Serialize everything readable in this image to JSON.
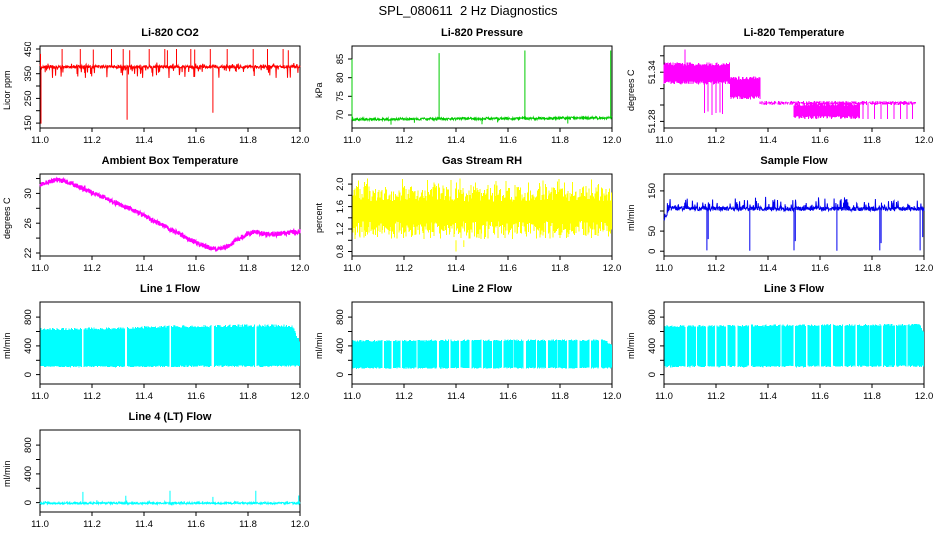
{
  "page_title": "SPL_080611  2 Hz Diagnostics",
  "background": "#FFFFFF",
  "axis_color": "#000000",
  "chart_data": [
    {
      "type": "line",
      "title": "Li-820 CO2",
      "xlabel": "",
      "ylabel": "Licor ppm",
      "xlim": [
        11,
        12
      ],
      "xticks": [
        11,
        11.2,
        11.4,
        11.6,
        11.8,
        12
      ],
      "xtick_labels": [
        "11.0",
        "11.2",
        "11.4",
        "11.6",
        "11.8",
        "12.0"
      ],
      "ylim": [
        130,
        462
      ],
      "yticks": [
        150,
        200,
        250,
        300,
        350,
        400,
        450
      ],
      "ytick_labels": [
        "150",
        "",
        "250",
        "",
        "350",
        "",
        "450"
      ],
      "grid": false,
      "legend": null,
      "series": {
        "kind": "line",
        "color": "#FF0000",
        "lw": 1,
        "n": 750,
        "keypoints": [
          [
            11,
            378
          ],
          [
            12,
            378
          ]
        ],
        "noise": 6,
        "p_down": 0.1,
        "amp_down": 48,
        "p_up": 0.03,
        "amp_up": 15,
        "spikes": [
          [
            11.002,
            430
          ],
          [
            11.004,
            148
          ],
          [
            11.085,
            450
          ],
          [
            11.155,
            450
          ],
          [
            11.205,
            448
          ],
          [
            11.275,
            450
          ],
          [
            11.32,
            450
          ],
          [
            11.335,
            163
          ],
          [
            11.345,
            445
          ],
          [
            11.42,
            450
          ],
          [
            11.48,
            450
          ],
          [
            11.49,
            445
          ],
          [
            11.525,
            450
          ],
          [
            11.58,
            450
          ],
          [
            11.595,
            448
          ],
          [
            11.655,
            450
          ],
          [
            11.665,
            192
          ],
          [
            11.72,
            450
          ],
          [
            11.82,
            450
          ],
          [
            11.875,
            450
          ],
          [
            11.935,
            450
          ],
          [
            11.955,
            445
          ]
        ]
      }
    },
    {
      "type": "line",
      "title": "Li-820 Pressure",
      "xlabel": "",
      "ylabel": "kPa",
      "xlim": [
        11,
        12
      ],
      "xticks": [
        11,
        11.2,
        11.4,
        11.6,
        11.8,
        12
      ],
      "xtick_labels": [
        "11.0",
        "11.2",
        "11.4",
        "11.6",
        "11.8",
        "12.0"
      ],
      "ylim": [
        66.5,
        88.5
      ],
      "yticks": [
        70,
        75,
        80,
        85
      ],
      "ytick_labels": [
        "70",
        "75",
        "80",
        "85"
      ],
      "grid": false,
      "legend": null,
      "series": {
        "kind": "line",
        "color": "#00CC00",
        "lw": 1,
        "n": 750,
        "keypoints": [
          [
            11,
            68.8
          ],
          [
            12,
            69.2
          ]
        ],
        "noise": 0.35,
        "spikes": [
          [
            11.0,
            85
          ],
          [
            11.15,
            67.4
          ],
          [
            11.24,
            67.9
          ],
          [
            11.335,
            86.6
          ],
          [
            11.5,
            67.5
          ],
          [
            11.56,
            68.0
          ],
          [
            11.665,
            87.3
          ],
          [
            11.83,
            67.7
          ],
          [
            11.995,
            87.3
          ]
        ]
      }
    },
    {
      "type": "line",
      "title": "Li-820 Temperature",
      "xlabel": "",
      "ylabel": "degrees C",
      "xlim": [
        11,
        12
      ],
      "xticks": [
        11,
        11.2,
        11.4,
        11.6,
        11.8,
        12
      ],
      "xtick_labels": [
        "11.0",
        "11.2",
        "11.4",
        "11.6",
        "11.8",
        "12.0"
      ],
      "ylim": [
        51.272,
        51.372
      ],
      "yticks": [
        51.28,
        51.3,
        51.32,
        51.34,
        51.36
      ],
      "ytick_labels": [
        "51.28",
        "",
        "",
        "51.34",
        ""
      ],
      "grid": false,
      "legend": null,
      "series": {
        "kind": "segband",
        "color": "#FF00FF",
        "edge_j": 0.004,
        "segments": [
          [
            11.0,
            11.255,
            51.325,
            51.352
          ],
          [
            11.255,
            11.37,
            51.307,
            51.335
          ],
          [
            11.37,
            11.97,
            51.3,
            51.305
          ],
          [
            11.5,
            11.755,
            51.283,
            51.303
          ]
        ],
        "drops": [
          [
            11.155,
            51.33,
            51.29
          ],
          [
            11.17,
            51.33,
            51.292
          ],
          [
            11.185,
            51.33,
            51.288
          ],
          [
            11.2,
            51.33,
            51.29
          ],
          [
            11.215,
            51.33,
            51.291
          ],
          [
            11.225,
            51.33,
            51.289
          ],
          [
            11.765,
            51.303,
            51.283
          ],
          [
            11.785,
            51.303,
            51.283
          ],
          [
            11.81,
            51.303,
            51.283
          ],
          [
            11.835,
            51.303,
            51.283
          ],
          [
            11.86,
            51.303,
            51.283
          ],
          [
            11.885,
            51.303,
            51.283
          ],
          [
            11.91,
            51.303,
            51.283
          ],
          [
            11.935,
            51.303,
            51.283
          ],
          [
            11.955,
            51.303,
            51.283
          ]
        ],
        "spikes": [
          [
            11.08,
            51.34,
            51.368
          ]
        ]
      }
    },
    {
      "type": "line",
      "title": "Ambient Box Temperature",
      "xlabel": "",
      "ylabel": "degrees C",
      "xlim": [
        11,
        12
      ],
      "xticks": [
        11,
        11.2,
        11.4,
        11.6,
        11.8,
        12
      ],
      "xtick_labels": [
        "11.0",
        "11.2",
        "11.4",
        "11.6",
        "11.8",
        "12.0"
      ],
      "ylim": [
        21.6,
        32.6
      ],
      "yticks": [
        22,
        24,
        26,
        28,
        30,
        32
      ],
      "ytick_labels": [
        "22",
        "",
        "26",
        "",
        "30",
        ""
      ],
      "grid": false,
      "legend": null,
      "series": {
        "kind": "line",
        "color": "#FF00FF",
        "lw": 1.3,
        "n": 1100,
        "noise": 0.33,
        "keypoints": [
          [
            11,
            31.2
          ],
          [
            11.03,
            31.5
          ],
          [
            11.07,
            31.8
          ],
          [
            11.1,
            31.6
          ],
          [
            11.15,
            30.9
          ],
          [
            11.2,
            30.1
          ],
          [
            11.25,
            29.4
          ],
          [
            11.3,
            28.6
          ],
          [
            11.35,
            27.9
          ],
          [
            11.4,
            27.0
          ],
          [
            11.45,
            26.1
          ],
          [
            11.5,
            25.2
          ],
          [
            11.55,
            24.3
          ],
          [
            11.6,
            23.4
          ],
          [
            11.65,
            22.7
          ],
          [
            11.68,
            22.5
          ],
          [
            11.72,
            22.9
          ],
          [
            11.76,
            23.8
          ],
          [
            11.8,
            24.6
          ],
          [
            11.83,
            24.8
          ],
          [
            11.86,
            24.6
          ],
          [
            11.9,
            24.5
          ],
          [
            11.95,
            24.7
          ],
          [
            12,
            24.9
          ]
        ],
        "spikes": []
      }
    },
    {
      "type": "line",
      "title": "Gas Stream RH",
      "xlabel": "",
      "ylabel": "percent",
      "xlim": [
        11,
        12
      ],
      "xticks": [
        11,
        11.2,
        11.4,
        11.6,
        11.8,
        12
      ],
      "xtick_labels": [
        "11.0",
        "11.2",
        "11.4",
        "11.6",
        "11.8",
        "12.0"
      ],
      "ylim": [
        0.72,
        2.18
      ],
      "yticks": [
        0.8,
        1.0,
        1.2,
        1.4,
        1.6,
        1.8,
        2.0
      ],
      "ytick_labels": [
        "0.8",
        "",
        "1.2",
        "",
        "1.6",
        "",
        "2.0"
      ],
      "grid": false,
      "legend": null,
      "series": {
        "kind": "band",
        "color": "#FFFF00",
        "lo": [
          [
            11,
            1.02
          ],
          [
            12,
            1.02
          ]
        ],
        "hi": [
          [
            11,
            1.97
          ],
          [
            12,
            1.97
          ]
        ],
        "lo_j": 0.32,
        "hi_j": 0.28,
        "p_over": 0.12,
        "amp_over": 0.13,
        "gaps": [],
        "spikes": [
          [
            11.4,
            1.0,
            0.8
          ],
          [
            11.43,
            1.0,
            0.88
          ]
        ]
      }
    },
    {
      "type": "line",
      "title": "Sample Flow",
      "xlabel": "",
      "ylabel": "ml/min",
      "xlim": [
        11,
        12
      ],
      "xticks": [
        11,
        11.2,
        11.4,
        11.6,
        11.8,
        12
      ],
      "xtick_labels": [
        "11.0",
        "11.2",
        "11.4",
        "11.6",
        "11.8",
        "12.0"
      ],
      "ylim": [
        -12,
        192
      ],
      "yticks": [
        0,
        50,
        100,
        150
      ],
      "ytick_labels": [
        "0",
        "50",
        "",
        "150"
      ],
      "grid": false,
      "legend": null,
      "series": {
        "kind": "line",
        "color": "#0000EE",
        "lw": 1,
        "n": 850,
        "noise": 5,
        "keypoints": [
          [
            11,
            75
          ],
          [
            11.02,
            106
          ],
          [
            12,
            105
          ]
        ],
        "p_up": 0.15,
        "amp_up": 26,
        "spikes": [
          [
            11.165,
            2
          ],
          [
            11.17,
            30
          ],
          [
            11.33,
            1
          ],
          [
            11.5,
            2
          ],
          [
            11.505,
            25
          ],
          [
            11.665,
            1
          ],
          [
            11.83,
            2
          ],
          [
            11.835,
            20
          ],
          [
            11.985,
            2
          ],
          [
            11.995,
            35
          ]
        ]
      }
    },
    {
      "type": "line",
      "title": "Line 1 Flow",
      "xlabel": "",
      "ylabel": "ml/min",
      "xlim": [
        11,
        12
      ],
      "xticks": [
        11,
        11.2,
        11.4,
        11.6,
        11.8,
        12
      ],
      "xtick_labels": [
        "11.0",
        "11.2",
        "11.4",
        "11.6",
        "11.8",
        "12.0"
      ],
      "ylim": [
        -130,
        1010
      ],
      "yticks": [
        0,
        200,
        400,
        600,
        800
      ],
      "ytick_labels": [
        "0",
        "",
        "400",
        "",
        "800"
      ],
      "grid": false,
      "legend": null,
      "series": {
        "kind": "band",
        "color": "#00FFFF",
        "lo": [
          [
            11,
            100
          ],
          [
            12,
            108
          ]
        ],
        "hi": [
          [
            11,
            650
          ],
          [
            11.3,
            660
          ],
          [
            11.5,
            688
          ],
          [
            11.85,
            700
          ],
          [
            11.97,
            695
          ],
          [
            12,
            470
          ]
        ],
        "lo_j": 22,
        "hi_j": 35,
        "gaps": [
          [
            11.165,
            0.008
          ],
          [
            11.33,
            0.008
          ],
          [
            11.5,
            0.009
          ],
          [
            11.665,
            0.008
          ],
          [
            11.83,
            0.008
          ]
        ],
        "spikes": []
      }
    },
    {
      "type": "line",
      "title": "Line 2 Flow",
      "xlabel": "",
      "ylabel": "ml/min",
      "xlim": [
        11,
        12
      ],
      "xticks": [
        11,
        11.2,
        11.4,
        11.6,
        11.8,
        12
      ],
      "xtick_labels": [
        "11.0",
        "11.2",
        "11.4",
        "11.6",
        "11.8",
        "12.0"
      ],
      "ylim": [
        -130,
        1010
      ],
      "yticks": [
        0,
        200,
        400,
        600,
        800
      ],
      "ytick_labels": [
        "0",
        "",
        "400",
        "",
        "800"
      ],
      "grid": false,
      "legend": null,
      "series": {
        "kind": "band",
        "color": "#00FFFF",
        "lo": [
          [
            11,
            80
          ],
          [
            12,
            85
          ]
        ],
        "hi": [
          [
            11,
            482
          ],
          [
            11.97,
            495
          ],
          [
            12,
            420
          ]
        ],
        "lo_j": 18,
        "hi_j": 25,
        "gaps": [
          [
            11.12,
            0.006
          ],
          [
            11.155,
            0.006
          ],
          [
            11.19,
            0.006
          ],
          [
            11.25,
            0.006
          ],
          [
            11.33,
            0.007
          ],
          [
            11.375,
            0.006
          ],
          [
            11.415,
            0.006
          ],
          [
            11.455,
            0.006
          ],
          [
            11.5,
            0.007
          ],
          [
            11.54,
            0.006
          ],
          [
            11.58,
            0.006
          ],
          [
            11.62,
            0.006
          ],
          [
            11.665,
            0.007
          ],
          [
            11.71,
            0.006
          ],
          [
            11.75,
            0.006
          ],
          [
            11.79,
            0.006
          ],
          [
            11.83,
            0.007
          ],
          [
            11.87,
            0.006
          ],
          [
            11.915,
            0.006
          ],
          [
            11.955,
            0.006
          ]
        ],
        "spikes": []
      }
    },
    {
      "type": "line",
      "title": "Line 3 Flow",
      "xlabel": "",
      "ylabel": "ml/min",
      "xlim": [
        11,
        12
      ],
      "xticks": [
        11,
        11.2,
        11.4,
        11.6,
        11.8,
        12
      ],
      "xtick_labels": [
        "11.0",
        "11.2",
        "11.4",
        "11.6",
        "11.8",
        "12.0"
      ],
      "ylim": [
        -130,
        1010
      ],
      "yticks": [
        0,
        200,
        400,
        600,
        800
      ],
      "ytick_labels": [
        "0",
        "",
        "400",
        "",
        "800"
      ],
      "grid": false,
      "legend": null,
      "series": {
        "kind": "band",
        "color": "#00FFFF",
        "lo": [
          [
            11,
            100
          ],
          [
            12,
            105
          ]
        ],
        "hi": [
          [
            11,
            690
          ],
          [
            11.985,
            710
          ],
          [
            12,
            600
          ]
        ],
        "lo_j": 25,
        "hi_j": 30,
        "gaps": [
          [
            11.085,
            0.006
          ],
          [
            11.125,
            0.006
          ],
          [
            11.165,
            0.006
          ],
          [
            11.2,
            0.006
          ],
          [
            11.24,
            0.006
          ],
          [
            11.28,
            0.006
          ],
          [
            11.33,
            0.007
          ],
          [
            11.45,
            0.006
          ],
          [
            11.5,
            0.007
          ],
          [
            11.55,
            0.006
          ],
          [
            11.6,
            0.006
          ],
          [
            11.645,
            0.006
          ],
          [
            11.69,
            0.006
          ],
          [
            11.74,
            0.006
          ],
          [
            11.79,
            0.006
          ],
          [
            11.84,
            0.006
          ],
          [
            11.89,
            0.006
          ],
          [
            11.935,
            0.006
          ]
        ],
        "spikes": []
      }
    },
    {
      "type": "line",
      "title": "Line 4 (LT) Flow",
      "xlabel": "",
      "ylabel": "ml/min",
      "xlim": [
        11,
        12
      ],
      "xticks": [
        11,
        11.2,
        11.4,
        11.6,
        11.8,
        12
      ],
      "xtick_labels": [
        "11.0",
        "11.2",
        "11.4",
        "11.6",
        "11.8",
        "12.0"
      ],
      "ylim": [
        -130,
        1010
      ],
      "yticks": [
        0,
        200,
        400,
        600,
        800
      ],
      "ytick_labels": [
        "0",
        "",
        "400",
        "",
        "800"
      ],
      "grid": false,
      "legend": null,
      "series": {
        "kind": "line",
        "color": "#00FFFF",
        "lw": 1,
        "n": 850,
        "noise": 12,
        "keypoints": [
          [
            11,
            -8
          ],
          [
            12,
            -8
          ]
        ],
        "p_up": 0.06,
        "amp_up": 30,
        "spikes": [
          [
            11.165,
            150
          ],
          [
            11.33,
            95
          ],
          [
            11.5,
            165
          ],
          [
            11.665,
            80
          ],
          [
            11.83,
            165
          ],
          [
            11.995,
            100
          ]
        ]
      }
    }
  ]
}
